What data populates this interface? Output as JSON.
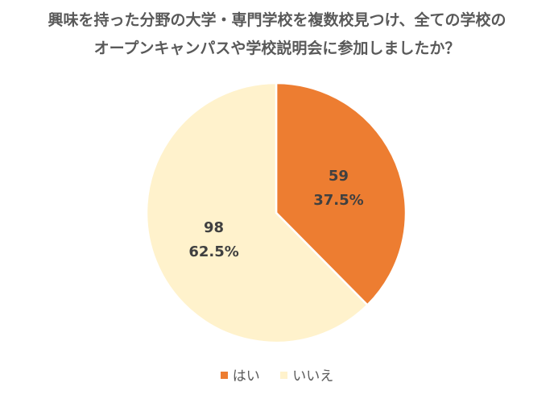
{
  "chart_data": {
    "type": "pie",
    "title_lines": [
      "興味を持った分野の大学・専門学校を複数校見つけ、全ての学校の",
      "オープンキャンパスや学校説明会に参加しましたか？"
    ],
    "slices": [
      {
        "name": "はい",
        "value": 59,
        "percent_label": "37.5%",
        "color": "#ED7D31"
      },
      {
        "name": "いいえ",
        "value": 98,
        "percent_label": "62.5%",
        "color": "#FFF2CC"
      }
    ],
    "start_angle": "12 o'clock",
    "direction": "clockwise",
    "legend_position": "bottom"
  }
}
